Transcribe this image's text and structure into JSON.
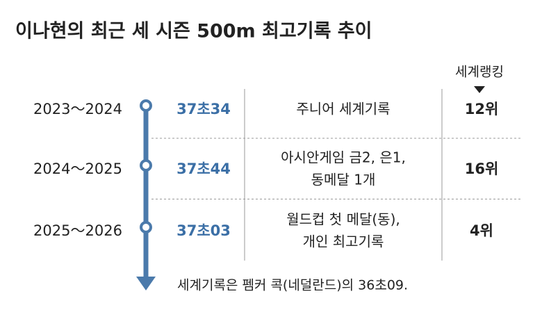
{
  "title": "이나현의 최근 세 시즌 500m 최고기록 추이",
  "header": {
    "ranking": "세계랭킹"
  },
  "rows": [
    {
      "season": "2023～2024",
      "record": "37초34",
      "achievement": [
        "주니어 세계기록"
      ],
      "ranking": "12위"
    },
    {
      "season": "2024～2025",
      "record": "37초44",
      "achievement": [
        "아시안게임 금2, 은1,",
        "동메달 1개"
      ],
      "ranking": "16위"
    },
    {
      "season": "2025～2026",
      "record": "37초03",
      "achievement": [
        "월드컵 첫 메달(동),",
        "개인 최고기록"
      ],
      "ranking": "4위"
    }
  ],
  "footnote": "세계기록은 펨커 콕(네덜란드)의 36초09."
}
